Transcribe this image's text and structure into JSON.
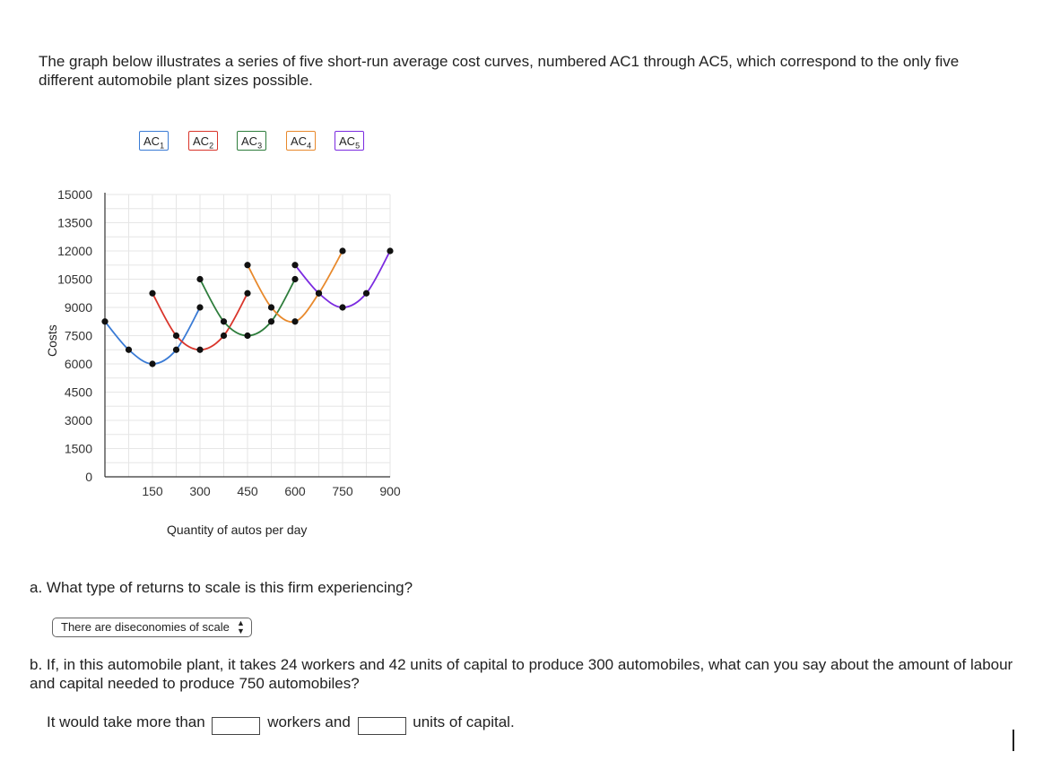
{
  "intro_text": "The graph below illustrates a series of five short-run average cost curves, numbered AC1 through AC5, which correspond to the only five different automobile plant sizes possible.",
  "legend": [
    {
      "base": "AC",
      "sub": "1",
      "color": "#3a7bd5"
    },
    {
      "base": "AC",
      "sub": "2",
      "color": "#d9352b"
    },
    {
      "base": "AC",
      "sub": "3",
      "color": "#2e7d3c"
    },
    {
      "base": "AC",
      "sub": "4",
      "color": "#e8892c"
    },
    {
      "base": "AC",
      "sub": "5",
      "color": "#7b2be0"
    }
  ],
  "chart_data": {
    "type": "line",
    "ylabel": "Costs",
    "xlabel": "Quantity of autos per day",
    "x_ticks": [
      "150",
      "300",
      "450",
      "600",
      "750",
      "900"
    ],
    "y_ticks": [
      "0",
      "1500",
      "3000",
      "4500",
      "6000",
      "7500",
      "9000",
      "10500",
      "12000",
      "13500",
      "15000"
    ],
    "xlim": [
      0,
      900
    ],
    "ylim": [
      0,
      15000
    ],
    "grid": true,
    "series": [
      {
        "name": "AC1",
        "color": "#3a7bd5",
        "x": [
          0,
          75,
          150,
          225,
          300
        ],
        "y": [
          8250,
          6750,
          6000,
          6750,
          9000
        ]
      },
      {
        "name": "AC2",
        "color": "#d9352b",
        "x": [
          150,
          225,
          300,
          375,
          450
        ],
        "y": [
          9750,
          7500,
          6750,
          7500,
          9750
        ]
      },
      {
        "name": "AC3",
        "color": "#2e7d3c",
        "x": [
          300,
          375,
          450,
          525,
          600
        ],
        "y": [
          10500,
          8250,
          7500,
          8250,
          10500
        ]
      },
      {
        "name": "AC4",
        "color": "#e8892c",
        "x": [
          450,
          525,
          600,
          675,
          750
        ],
        "y": [
          11250,
          9000,
          8250,
          9750,
          12000
        ]
      },
      {
        "name": "AC5",
        "color": "#7b2be0",
        "x": [
          600,
          675,
          750,
          825,
          900
        ],
        "y": [
          11250,
          9750,
          9000,
          9750,
          12000
        ]
      }
    ]
  },
  "question_a": "a. What type of returns to scale is this firm experiencing?",
  "select_value": "There are diseconomies of scale",
  "question_b": "b. If, in this automobile plant, it takes 24 workers and 42 units of capital to produce 300 automobiles, what can you say about the amount of labour and capital needed to produce 750 automobiles?",
  "answer": {
    "prefix": "It would take more than",
    "middle": "workers and",
    "suffix": "units of capital."
  }
}
